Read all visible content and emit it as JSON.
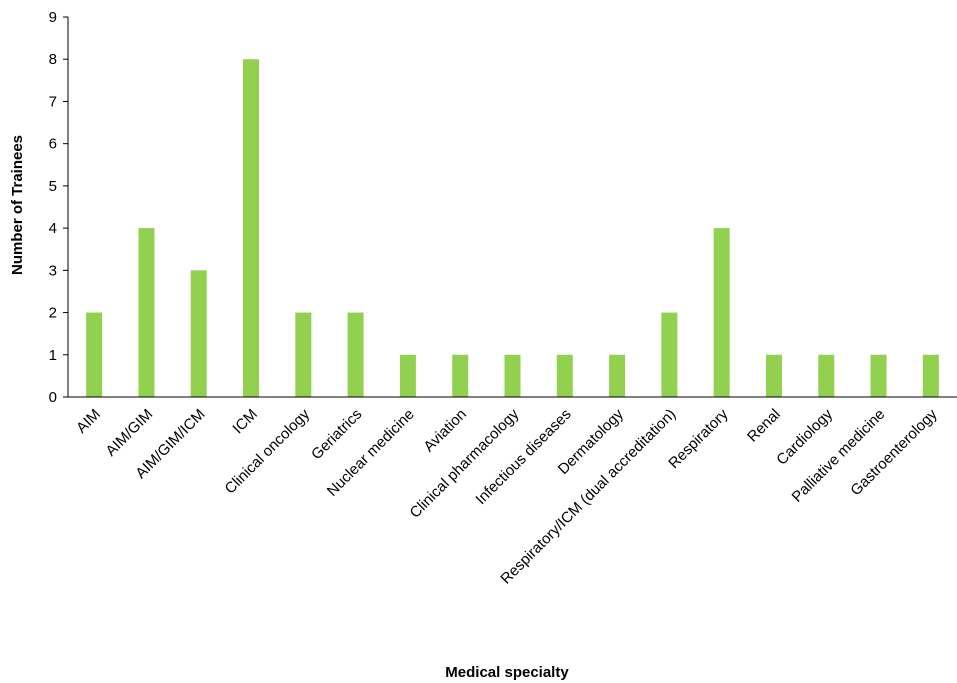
{
  "chart_data": {
    "type": "bar",
    "xlabel": "Medical specialty",
    "ylabel": "Number of Trainees",
    "ylim": [
      0,
      9
    ],
    "yticks": [
      0,
      1,
      2,
      3,
      4,
      5,
      6,
      7,
      8,
      9
    ],
    "grid": false,
    "bar_color": "#92d050",
    "categories": [
      "AIM",
      "AIM/GIM",
      "AIM/GIM/ICM",
      "ICM",
      "Clinical oncology",
      "Geriatrics",
      "Nuclear medicine",
      "Aviation",
      "Clinical pharmacology",
      "Infectious diseases",
      "Dermatology",
      "Respiratory/ICM (dual accreditation)",
      "Respiratory",
      "Renal",
      "Cardiology",
      "Palliative medicine",
      "Gastroenterology"
    ],
    "values": [
      2,
      4,
      3,
      8,
      2,
      2,
      1,
      1,
      1,
      1,
      1,
      2,
      4,
      1,
      1,
      1,
      1
    ]
  }
}
